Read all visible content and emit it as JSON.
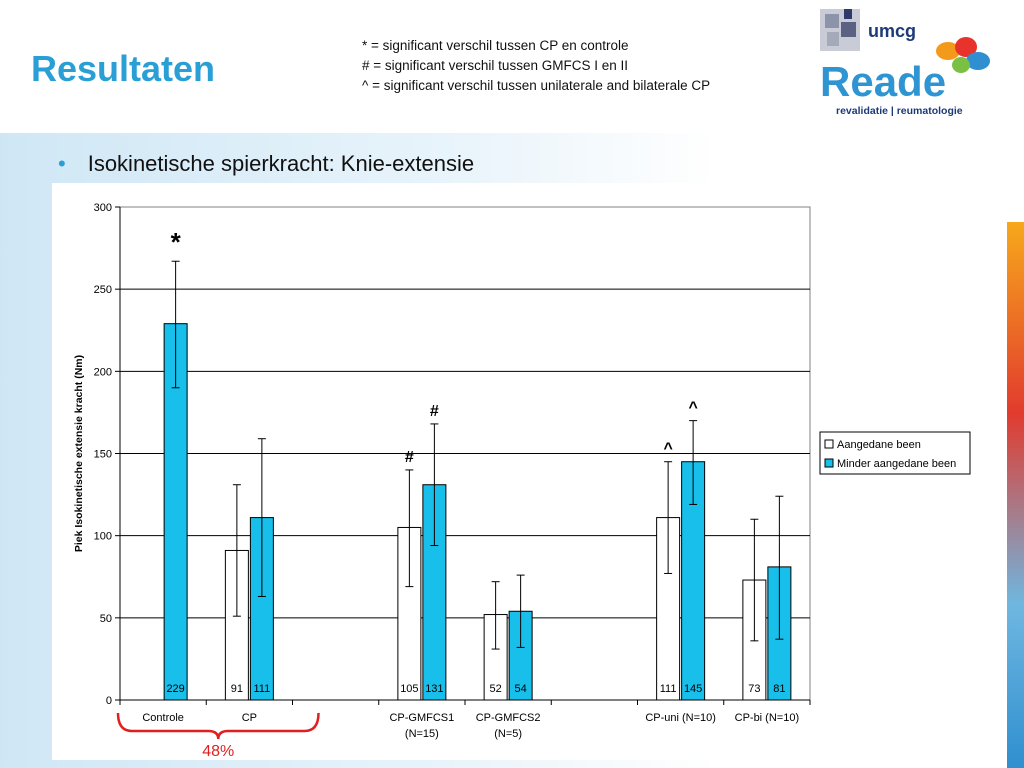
{
  "header": {
    "title": "Resultaten",
    "notes": [
      "* = significant verschil tussen CP en controle",
      "# = significant verschil tussen GMFCS I en II",
      "^ = significant verschil tussen unilaterale and bilaterale CP"
    ]
  },
  "logo": {
    "umcg_text": "umcg",
    "reade_text": "Reade",
    "tagline": "revalidatie | reumatologie"
  },
  "bullet": {
    "text": "Isokinetische spierkracht: Knie-extensie"
  },
  "colors": {
    "affected": "#ffffff",
    "less_affected": "#17bfea",
    "title": "#2a9fd6",
    "brace": "#e02020"
  },
  "chart_data": {
    "type": "bar",
    "ylabel": "Piek Isokinetische extensie kracht (Nm)",
    "ylim": [
      0,
      300
    ],
    "yticks": [
      0,
      50,
      100,
      150,
      200,
      250,
      300
    ],
    "grid": true,
    "legend_position": "right",
    "categories": [
      {
        "label": [
          "Controle"
        ]
      },
      {
        "label": [
          "CP"
        ]
      },
      {
        "label": [
          ""
        ]
      },
      {
        "label": [
          "CP-GMFCS1",
          "(N=15)"
        ]
      },
      {
        "label": [
          "CP-GMFCS2",
          "(N=5)"
        ]
      },
      {
        "label": [
          ""
        ]
      },
      {
        "label": [
          "CP-uni (N=10)"
        ]
      },
      {
        "label": [
          "CP-bi (N=10)"
        ]
      }
    ],
    "series": [
      {
        "name": "Aangedane been",
        "values": [
          null,
          91,
          null,
          105,
          52,
          null,
          111,
          73
        ],
        "labels": [
          "",
          "91",
          "",
          "105",
          "52",
          "",
          "111",
          "73"
        ],
        "err_low": [
          null,
          51,
          null,
          69,
          31,
          null,
          77,
          36
        ],
        "err_high": [
          null,
          131,
          null,
          140,
          72,
          null,
          145,
          110
        ],
        "markers": [
          "",
          "",
          "",
          "#",
          "",
          "",
          "^",
          ""
        ]
      },
      {
        "name": "Minder aangedane been",
        "values": [
          229,
          111,
          null,
          131,
          54,
          null,
          145,
          81
        ],
        "labels": [
          "229",
          "111",
          "",
          "131",
          "54",
          "",
          "145",
          "81"
        ],
        "err_low": [
          190,
          63,
          null,
          94,
          32,
          null,
          119,
          37
        ],
        "err_high": [
          267,
          159,
          null,
          168,
          76,
          null,
          170,
          124
        ],
        "markers": [
          "*",
          "",
          "",
          "#",
          "",
          "",
          "^",
          ""
        ]
      }
    ],
    "annotation": {
      "text": "48%",
      "spans": [
        "Controle",
        "CP"
      ]
    }
  }
}
